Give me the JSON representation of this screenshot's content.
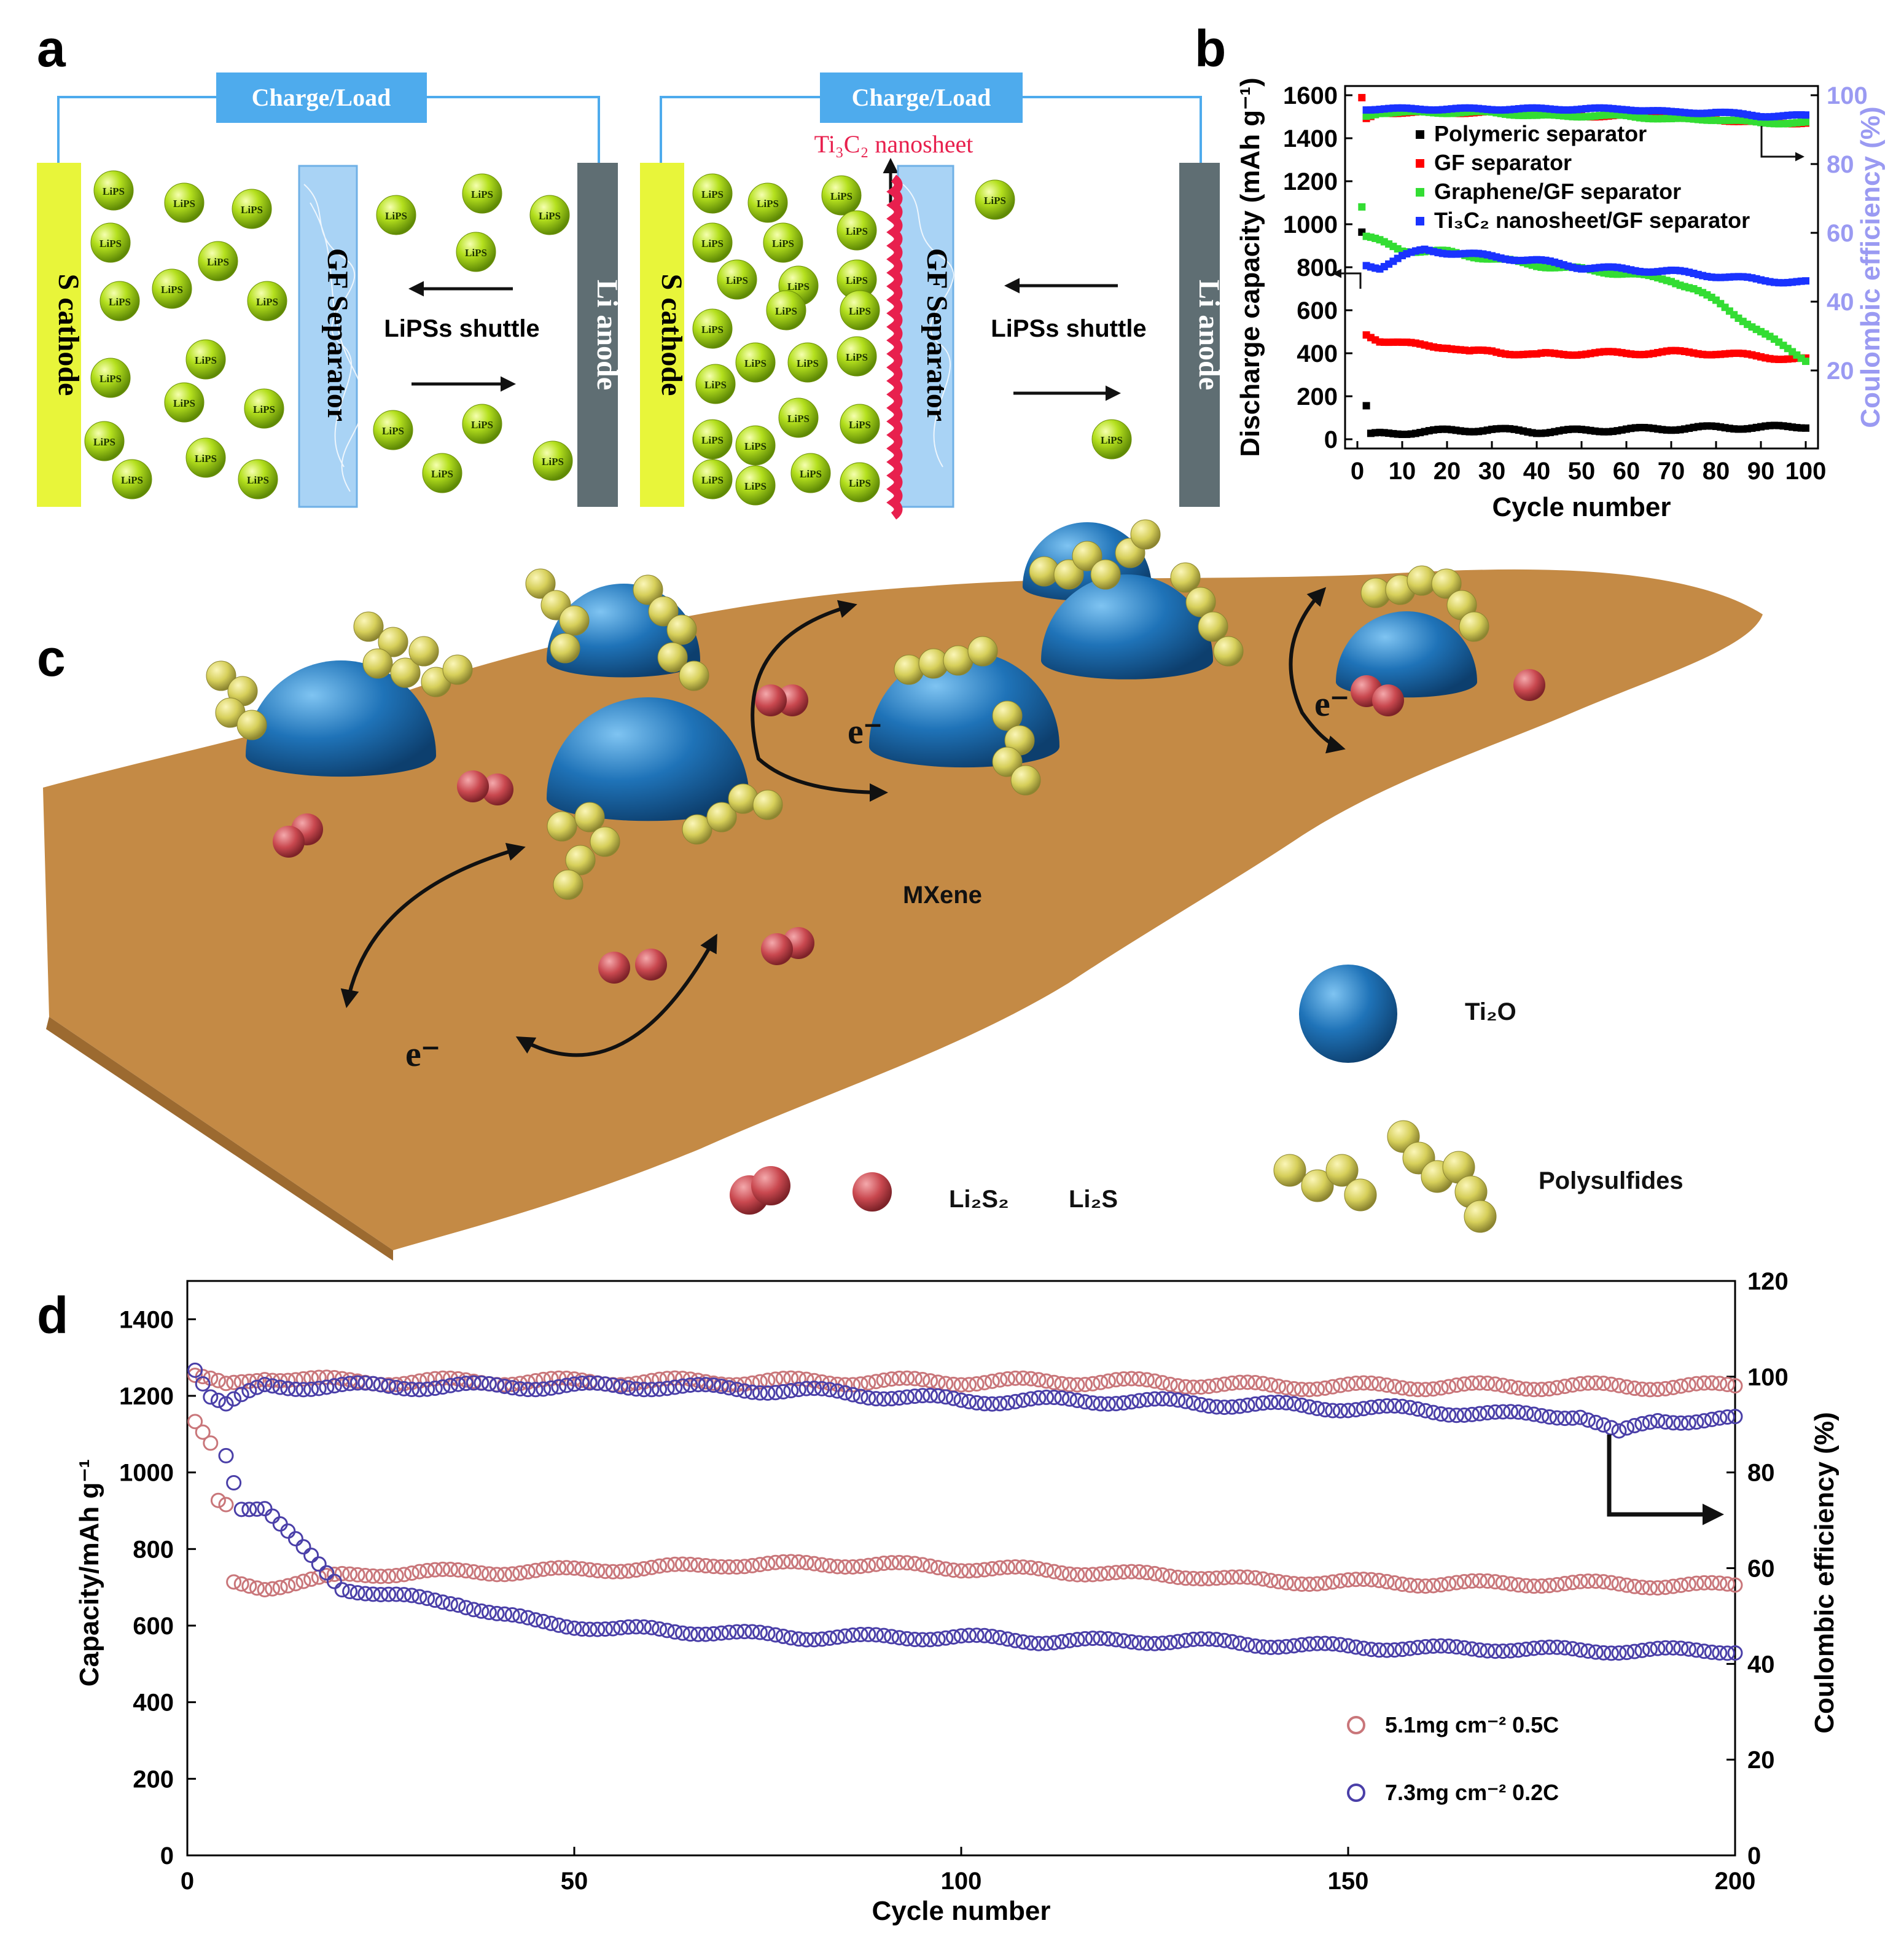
{
  "panel_labels": {
    "a": "a",
    "b": "b",
    "c": "c",
    "d": "d"
  },
  "panel_a": {
    "left": {
      "charge_label": "Charge/Load",
      "cathode": "S cathode",
      "separator": "GF Separator",
      "anode": "Li anode",
      "shuttle": "LiPSs shuttle",
      "particle": "LiPS"
    },
    "right": {
      "charge_label": "Charge/Load",
      "cathode": "S cathode",
      "separator": "GF Separator",
      "anode": "Li anode",
      "shuttle": "LiPSs shuttle",
      "nanosheet": "Ti₃C₂ nanosheet",
      "particle": "LiPS"
    },
    "colors": {
      "cathode": "#e8f53a",
      "anode": "#5f6e73",
      "separator": "#a9d3f5",
      "box": "#4eabed",
      "nanosheet": "#e8204e",
      "particle": "#b4e01e"
    }
  },
  "panel_c": {
    "mxene_label": "MXene",
    "electron": "e⁻",
    "legend": {
      "ti2o": "Ti₂O",
      "li2s2": "Li₂S₂",
      "li2s": "Li₂S",
      "polysulfides": "Polysulfides"
    },
    "colors": {
      "sheet": "#c48a45",
      "sphere": "#1f73b8",
      "polysulfide": "#d6cf5a",
      "li2s": "#c9484f"
    }
  },
  "chart_data": [
    {
      "type": "scatter",
      "title": "",
      "xlabel": "Cycle number",
      "ylabel": "Discharge capacity (mAh g⁻¹)",
      "y2label": "Coulombic efficiency (%)",
      "xlim": [
        0,
        100
      ],
      "ylim": [
        0,
        1600
      ],
      "y2lim": [
        0,
        100
      ],
      "xticks": [
        0,
        10,
        20,
        30,
        40,
        50,
        60,
        70,
        80,
        90,
        100
      ],
      "yticks": [
        0,
        200,
        400,
        600,
        800,
        1000,
        1200,
        1400,
        1600
      ],
      "y2ticks": [
        20,
        40,
        60,
        80,
        100
      ],
      "legend_position": "upper-left inside",
      "series": [
        {
          "name": "Polymeric  separator",
          "color": "#000000",
          "capacity": {
            "x": [
              1,
              2,
              3,
              5,
              10,
              20,
              30,
              40,
              50,
              60,
              70,
              80,
              90,
              100
            ],
            "y": [
              960,
              150,
              20,
              25,
              30,
              40,
              45,
              35,
              40,
              45,
              50,
              55,
              55,
              60
            ]
          },
          "efficiency": {
            "x": [],
            "y": []
          }
        },
        {
          "name": "GF separator",
          "color": "#ff0000",
          "capacity": {
            "x": [
              2,
              5,
              10,
              20,
              25,
              30,
              40,
              42,
              50,
              60,
              70,
              80,
              90,
              100
            ],
            "y": [
              490,
              460,
              445,
              430,
              405,
              410,
              390,
              395,
              400,
              400,
              405,
              400,
              385,
              370
            ]
          },
          "efficiency": {
            "x": [
              1,
              2,
              5,
              10,
              20,
              30,
              40,
              50,
              60,
              70,
              80,
              90,
              100
            ],
            "y": [
              99,
              93,
              95,
              95,
              95,
              95,
              95,
              94,
              94,
              94,
              93,
              92,
              92
            ]
          }
        },
        {
          "name": "Graphene/GF separator",
          "color": "#33dd33",
          "capacity": {
            "x": [
              1,
              2,
              5,
              10,
              20,
              30,
              40,
              50,
              60,
              70,
              75,
              80,
              85,
              90,
              95,
              100
            ],
            "y": [
              1080,
              940,
              920,
              880,
              870,
              840,
              810,
              790,
              770,
              740,
              700,
              640,
              570,
              500,
              430,
              370
            ]
          },
          "efficiency": {
            "x": [
              2,
              5,
              10,
              20,
              30,
              40,
              50,
              60,
              70,
              80,
              90,
              100
            ],
            "y": [
              94,
              95,
              95,
              95,
              95,
              94,
              94,
              94,
              93,
              93,
              92,
              92
            ]
          }
        },
        {
          "name": "Ti₃C₂ nanosheet/GF separator",
          "color": "#1a33ff",
          "capacity": {
            "x": [
              2,
              5,
              10,
              15,
              20,
              30,
              40,
              50,
              60,
              70,
              80,
              90,
              100
            ],
            "y": [
              810,
              800,
              850,
              880,
              870,
              850,
              830,
              800,
              790,
              780,
              760,
              740,
              730
            ]
          },
          "efficiency": {
            "x": [
              2,
              5,
              10,
              20,
              30,
              40,
              50,
              60,
              70,
              80,
              90,
              100
            ],
            "y": [
              96,
              96,
              96,
              96,
              96,
              96,
              96,
              96,
              95,
              95,
              94,
              94
            ]
          }
        }
      ]
    },
    {
      "type": "scatter",
      "title": "",
      "xlabel": "Cycle number",
      "ylabel": "Capacity/mAh g⁻¹",
      "y2label": "Coulombic efficiency (%)",
      "xlim": [
        0,
        200
      ],
      "ylim": [
        0,
        1500
      ],
      "y2lim": [
        0,
        120
      ],
      "xticks": [
        0,
        50,
        100,
        150,
        200
      ],
      "yticks": [
        0,
        200,
        400,
        600,
        800,
        1000,
        1200,
        1400
      ],
      "y2ticks": [
        0,
        20,
        40,
        60,
        80,
        100,
        120
      ],
      "legend_position": "lower-right",
      "series": [
        {
          "name": "5.1mg cm⁻² 0.5C",
          "color": "#c9767a",
          "capacity": {
            "x": [
              1,
              2,
              3,
              4,
              5,
              6,
              10,
              20,
              30,
              40,
              50,
              60,
              70,
              80,
              90,
              100,
              110,
              120,
              130,
              140,
              150,
              160,
              170,
              180,
              190,
              200
            ],
            "y": [
              1130,
              1100,
              1070,
              920,
              910,
              710,
              700,
              730,
              740,
              740,
              745,
              750,
              760,
              760,
              760,
              750,
              745,
              735,
              730,
              715,
              715,
              710,
              710,
              710,
              705,
              705
            ]
          },
          "efficiency": {
            "x": [
              1,
              5,
              10,
              20,
              40,
              60,
              80,
              100,
              120,
              140,
              160,
              180,
              200
            ],
            "y": [
              100,
              98,
              100,
              99,
              99,
              99,
              99,
              99,
              99,
              98,
              98,
              98,
              98
            ]
          }
        },
        {
          "name": "7.3mg cm⁻² 0.2C",
          "color": "#4a3fa8",
          "capacity": {
            "x": [
              5,
              7,
              10,
              12,
              15,
              18,
              20,
              25,
              30,
              35,
              40,
              45,
              50,
              55,
              60,
              70,
              80,
              90,
              100,
              110,
              120,
              130,
              140,
              150,
              160,
              170,
              180,
              190,
              200
            ],
            "y": [
              1050,
              910,
              905,
              860,
              800,
              740,
              700,
              680,
              670,
              660,
              630,
              610,
              600,
              590,
              590,
              580,
              570,
              570,
              570,
              560,
              560,
              560,
              550,
              545,
              540,
              540,
              535,
              535,
              535
            ]
          },
          "efficiency": {
            "x": [
              1,
              3,
              5,
              10,
              20,
              40,
              60,
              80,
              100,
              120,
              140,
              160,
              170,
              180,
              185,
              190,
              200
            ],
            "y": [
              102,
              96,
              94,
              98,
              98,
              98,
              98,
              97,
              95,
              95,
              94,
              93,
              92,
              92,
              88,
              91,
              91
            ]
          }
        }
      ]
    }
  ]
}
